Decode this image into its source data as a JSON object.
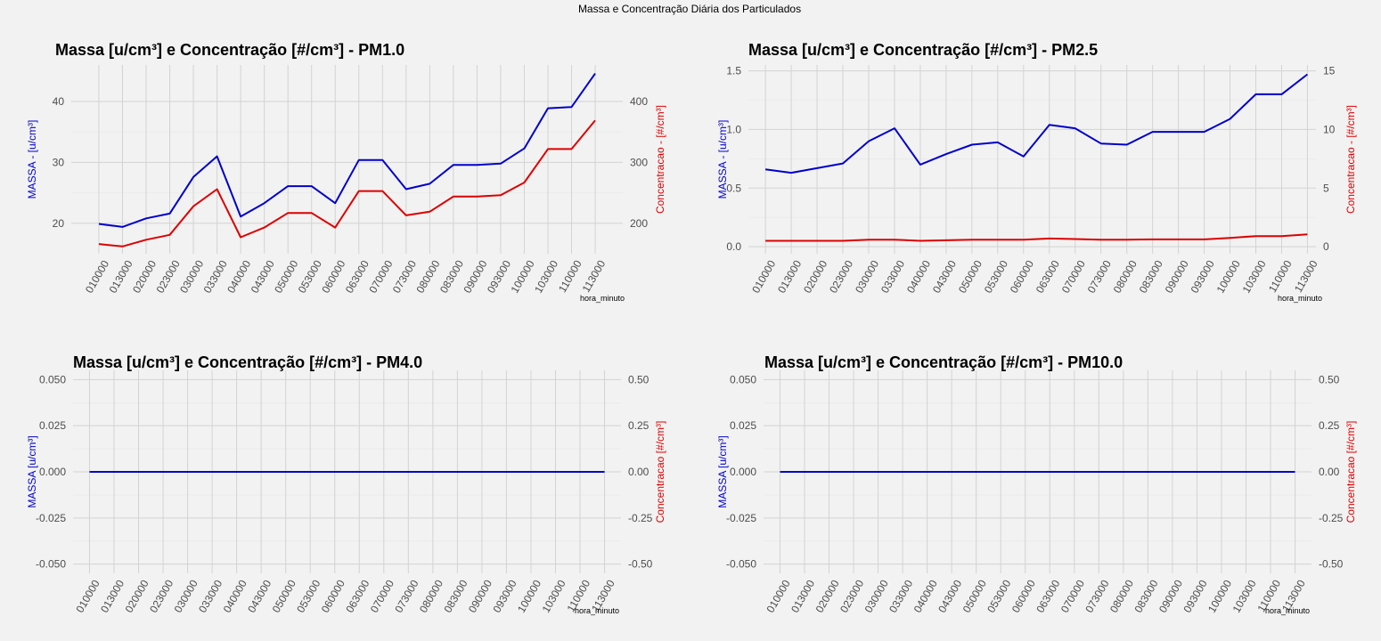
{
  "page": {
    "suptitle": "Massa e Concentração Diária dos Particulados"
  },
  "colors": {
    "massa": "#0000cc",
    "concentracao": "#dd0000",
    "background": "#f2f2f2",
    "grid": "#d3d3d3",
    "tick_text": "#4d4d4d"
  },
  "chart_data": [
    {
      "type": "line",
      "title": "Massa [u/cm³] e Concentração [#/cm³] - PM1.0",
      "xlabel": "hora_minuto",
      "ylabel": "MASSA - [u/cm³]",
      "y2label": "Concentracao - [#/cm³]",
      "categories": [
        "010000",
        "013000",
        "020000",
        "023000",
        "030000",
        "033000",
        "040000",
        "043000",
        "050000",
        "053000",
        "060000",
        "063000",
        "070000",
        "073000",
        "080000",
        "083000",
        "090000",
        "093000",
        "100000",
        "103000",
        "110000",
        "113000"
      ],
      "ylim": [
        15,
        46
      ],
      "y2lim": [
        150,
        460
      ],
      "yticks": [
        20,
        30,
        40
      ],
      "y2ticks": [
        200,
        300,
        400
      ],
      "grid": true,
      "series": [
        {
          "axis": "left",
          "values": [
            19.9,
            19.4,
            20.8,
            21.6,
            27.6,
            31.0,
            21.1,
            23.3,
            26.1,
            26.1,
            23.3,
            30.4,
            30.4,
            25.6,
            26.5,
            29.6,
            29.6,
            29.8,
            32.3,
            38.9,
            39.1,
            44.6
          ]
        },
        {
          "axis": "right",
          "values": [
            166,
            162,
            173,
            181,
            228,
            256,
            177,
            193,
            217,
            217,
            193,
            253,
            253,
            213,
            219,
            244,
            244,
            246,
            267,
            322,
            322,
            369
          ]
        }
      ]
    },
    {
      "type": "line",
      "title": "Massa [u/cm³] e Concentração [#/cm³] - PM2.5",
      "xlabel": "hora_minuto",
      "ylabel": "MASSA - [u/cm³]",
      "y2label": "Concentracao - [#/cm³]",
      "categories": [
        "010000",
        "013000",
        "020000",
        "023000",
        "030000",
        "033000",
        "040000",
        "043000",
        "050000",
        "053000",
        "060000",
        "063000",
        "070000",
        "073000",
        "080000",
        "083000",
        "090000",
        "093000",
        "100000",
        "103000",
        "110000",
        "113000"
      ],
      "ylim": [
        -0.06,
        1.55
      ],
      "y2lim": [
        -0.6,
        15.5
      ],
      "yticks": [
        0.0,
        0.5,
        1.0,
        1.5
      ],
      "y2ticks": [
        0,
        5,
        10,
        15
      ],
      "grid": true,
      "series": [
        {
          "axis": "left",
          "values": [
            0.66,
            0.63,
            0.67,
            0.71,
            0.9,
            1.01,
            0.7,
            0.79,
            0.87,
            0.89,
            0.77,
            1.04,
            1.01,
            0.88,
            0.87,
            0.98,
            0.98,
            0.98,
            1.09,
            1.3,
            1.3,
            1.47
          ]
        },
        {
          "axis": "right",
          "values": [
            0.5,
            0.5,
            0.5,
            0.5,
            0.6,
            0.6,
            0.5,
            0.55,
            0.6,
            0.6,
            0.6,
            0.7,
            0.65,
            0.6,
            0.6,
            0.62,
            0.62,
            0.62,
            0.75,
            0.9,
            0.9,
            1.05
          ]
        }
      ]
    },
    {
      "type": "line",
      "title": "Massa [u/cm³] e Concentração [#/cm³] - PM4.0",
      "xlabel": "hora_minuto",
      "ylabel": "MASSA [u/cm³]",
      "y2label": "Concentracao [#/cm³]",
      "categories": [
        "010000",
        "013000",
        "020000",
        "023000",
        "030000",
        "033000",
        "040000",
        "043000",
        "050000",
        "053000",
        "060000",
        "063000",
        "070000",
        "073000",
        "080000",
        "083000",
        "090000",
        "093000",
        "100000",
        "103000",
        "110000",
        "113000"
      ],
      "ylim": [
        -0.055,
        0.055
      ],
      "y2lim": [
        -0.55,
        0.55
      ],
      "yticks": [
        -0.05,
        -0.025,
        0.0,
        0.025,
        0.05
      ],
      "y2ticks": [
        -0.5,
        -0.25,
        0.0,
        0.25,
        0.5
      ],
      "grid": true,
      "series": [
        {
          "axis": "left",
          "values": [
            0,
            0,
            0,
            0,
            0,
            0,
            0,
            0,
            0,
            0,
            0,
            0,
            0,
            0,
            0,
            0,
            0,
            0,
            0,
            0,
            0,
            0
          ]
        },
        {
          "axis": "right",
          "values": [
            0,
            0,
            0,
            0,
            0,
            0,
            0,
            0,
            0,
            0,
            0,
            0,
            0,
            0,
            0,
            0,
            0,
            0,
            0,
            0,
            0,
            0
          ]
        }
      ]
    },
    {
      "type": "line",
      "title": "Massa [u/cm³] e Concentração [#/cm³] - PM10.0",
      "xlabel": "hora_minuto",
      "ylabel": "MASSA [u/cm³]",
      "y2label": "Concentracao [#/cm³]",
      "categories": [
        "010000",
        "013000",
        "020000",
        "023000",
        "030000",
        "033000",
        "040000",
        "043000",
        "050000",
        "053000",
        "060000",
        "063000",
        "070000",
        "073000",
        "080000",
        "083000",
        "090000",
        "093000",
        "100000",
        "103000",
        "110000",
        "113000"
      ],
      "ylim": [
        -0.055,
        0.055
      ],
      "y2lim": [
        -0.55,
        0.55
      ],
      "yticks": [
        -0.05,
        -0.025,
        0.0,
        0.025,
        0.05
      ],
      "y2ticks": [
        -0.5,
        -0.25,
        0.0,
        0.25,
        0.5
      ],
      "grid": true,
      "series": [
        {
          "axis": "left",
          "values": [
            0,
            0,
            0,
            0,
            0,
            0,
            0,
            0,
            0,
            0,
            0,
            0,
            0,
            0,
            0,
            0,
            0,
            0,
            0,
            0,
            0,
            0
          ]
        },
        {
          "axis": "right",
          "values": [
            0,
            0,
            0,
            0,
            0,
            0,
            0,
            0,
            0,
            0,
            0,
            0,
            0,
            0,
            0,
            0,
            0,
            0,
            0,
            0,
            0,
            0
          ]
        }
      ]
    }
  ]
}
